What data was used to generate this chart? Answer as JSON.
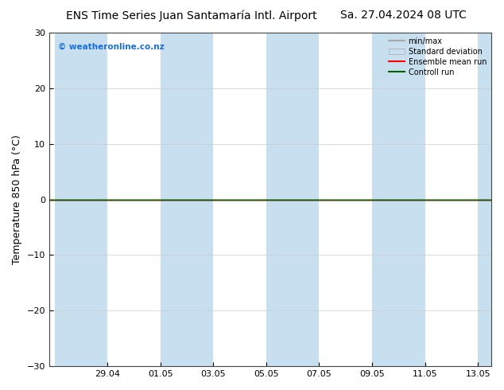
{
  "title": "ENS Time Series Juan Santamaría Intl. Airport",
  "title_right": "Sa. 27.04.2024 08 UTC",
  "ylabel": "Temperature 850 hPa (°C)",
  "watermark": "© weatheronline.co.nz",
  "watermark_color": "#1a6ed8",
  "ylim": [
    -30,
    30
  ],
  "yticks": [
    -30,
    -20,
    -10,
    0,
    10,
    20,
    30
  ],
  "x_tick_labels": [
    "29.04",
    "01.05",
    "03.05",
    "05.05",
    "07.05",
    "09.05",
    "11.05",
    "13.05"
  ],
  "bg_color": "#ffffff",
  "plot_bg_color": "#ffffff",
  "shaded_band_color": "#c8dff0",
  "line_zero_color": "#000000",
  "ensemble_mean_color": "#ff0000",
  "control_run_color": "#006400",
  "minmax_color": "#a8a8a8",
  "std_dev_color": "#c8dff0",
  "legend_entries": [
    "min/max",
    "Standard deviation",
    "Ensemble mean run",
    "Controll run"
  ],
  "legend_colors": [
    "#a8a8a8",
    "#c8dff0",
    "#ff0000",
    "#006400"
  ],
  "title_fontsize": 10,
  "axis_fontsize": 9,
  "tick_fontsize": 8
}
